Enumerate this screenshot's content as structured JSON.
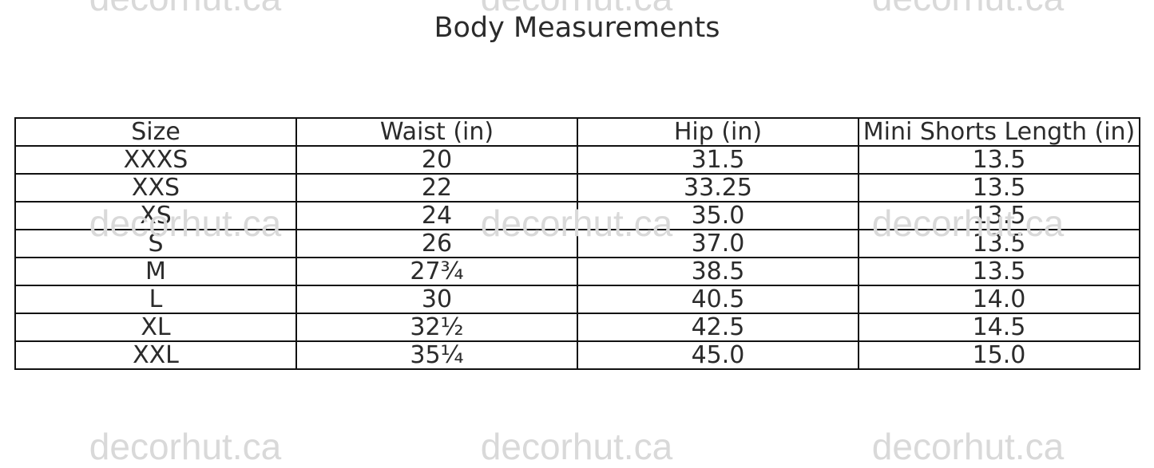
{
  "title": "Body Measurements",
  "watermark": "decorhut.ca",
  "table": {
    "headers": [
      "Size",
      "Waist (in)",
      "Hip (in)",
      "Mini Shorts Length (in)"
    ],
    "rows": [
      [
        "XXXS",
        "20",
        "31.5",
        "13.5"
      ],
      [
        "XXS",
        "22",
        "33.25",
        "13.5"
      ],
      [
        "XS",
        "24",
        "35.0",
        "13.5"
      ],
      [
        "S",
        "26",
        "37.0",
        "13.5"
      ],
      [
        "M",
        "27¾",
        "38.5",
        "13.5"
      ],
      [
        "L",
        "30",
        "40.5",
        "14.0"
      ],
      [
        "XL",
        "32½",
        "42.5",
        "14.5"
      ],
      [
        "XXL",
        "35¼",
        "45.0",
        "15.0"
      ]
    ]
  }
}
